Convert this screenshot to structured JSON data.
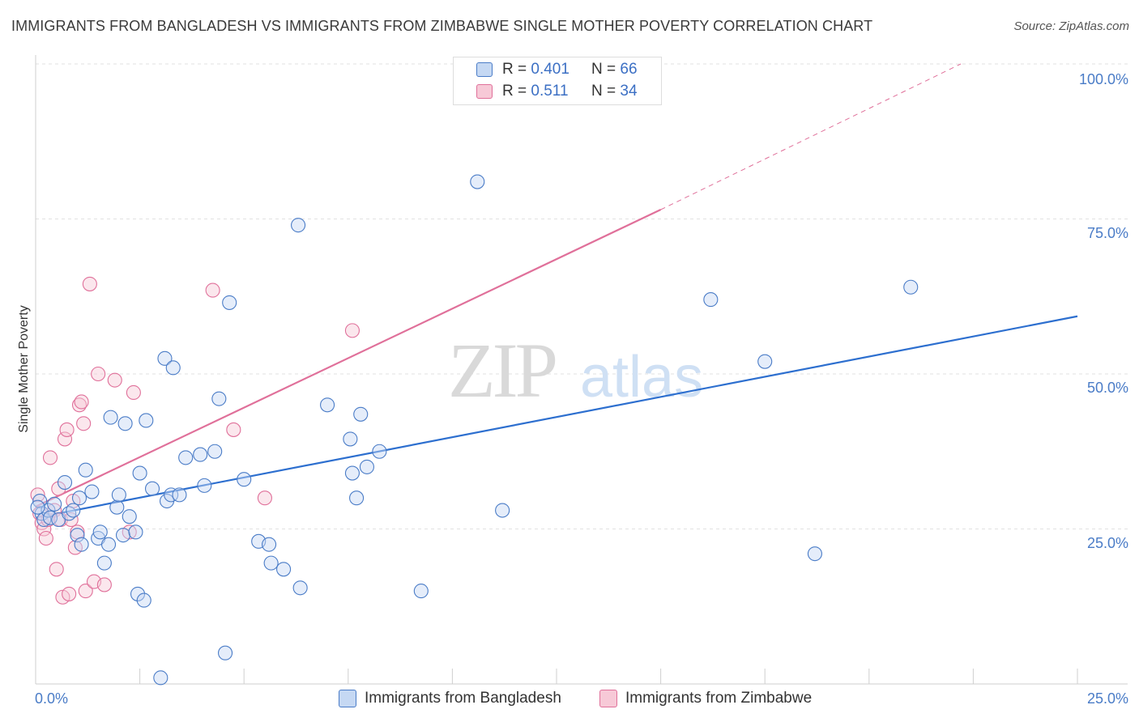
{
  "title": "IMMIGRANTS FROM BANGLADESH VS IMMIGRANTS FROM ZIMBABWE SINGLE MOTHER POVERTY CORRELATION CHART",
  "source": "Source: ZipAtlas.com",
  "watermark": {
    "zip": "ZIP",
    "atlas": "atlas"
  },
  "colors": {
    "blue": "#4a7cc7",
    "blue_fill": "#c5d8f3",
    "blue_line": "#2d6fcf",
    "pink": "#e0709a",
    "pink_fill": "#f7c9d7",
    "pink_line": "#e0709a"
  },
  "legend": {
    "rows": [
      {
        "r_label": "R = ",
        "r_value": "0.401",
        "n_label": "N = ",
        "n_value": "66"
      },
      {
        "r_label": "R = ",
        "r_value": " 0.511",
        "n_label": "N = ",
        "n_value": "34"
      }
    ]
  },
  "bottom_legend": {
    "series1": "Immigrants from Bangladesh",
    "series2": "Immigrants from Zimbabwe"
  },
  "chart_data": {
    "type": "scatter",
    "title": "IMMIGRANTS FROM BANGLADESH VS IMMIGRANTS FROM ZIMBABWE SINGLE MOTHER POVERTY CORRELATION CHART",
    "xlabel": "",
    "ylabel": "Single Mother Poverty",
    "xlim": [
      0,
      25
    ],
    "ylim": [
      0,
      102
    ],
    "x_tick_labels": [
      "0.0%",
      "25.0%"
    ],
    "y_ticks": [
      25,
      50,
      75,
      100
    ],
    "y_tick_labels": [
      "25.0%",
      "50.0%",
      "75.0%",
      "100.0%"
    ],
    "series": [
      {
        "name": "Immigrants from Bangladesh",
        "color": "#4a7cc7",
        "points": [
          [
            0.1,
            29.5
          ],
          [
            0.15,
            27.5
          ],
          [
            0.2,
            26.5
          ],
          [
            0.3,
            28.0
          ],
          [
            0.35,
            26.8
          ],
          [
            0.45,
            29.0
          ],
          [
            0.55,
            26.5
          ],
          [
            0.7,
            32.5
          ],
          [
            0.8,
            27.5
          ],
          [
            0.9,
            28.0
          ],
          [
            1.0,
            24.0
          ],
          [
            1.05,
            30.0
          ],
          [
            1.1,
            22.5
          ],
          [
            1.2,
            34.5
          ],
          [
            1.35,
            31.0
          ],
          [
            1.5,
            23.5
          ],
          [
            1.55,
            24.5
          ],
          [
            1.65,
            19.5
          ],
          [
            1.75,
            22.5
          ],
          [
            1.8,
            43.0
          ],
          [
            1.95,
            28.5
          ],
          [
            2.0,
            30.5
          ],
          [
            2.1,
            24.0
          ],
          [
            2.15,
            42.0
          ],
          [
            2.25,
            27.0
          ],
          [
            2.4,
            24.5
          ],
          [
            2.45,
            14.5
          ],
          [
            2.5,
            34.0
          ],
          [
            2.6,
            13.5
          ],
          [
            2.65,
            42.5
          ],
          [
            2.8,
            31.5
          ],
          [
            3.0,
            1.0
          ],
          [
            3.1,
            52.5
          ],
          [
            3.15,
            29.5
          ],
          [
            3.25,
            30.5
          ],
          [
            3.3,
            51.0
          ],
          [
            3.45,
            30.5
          ],
          [
            3.6,
            36.5
          ],
          [
            3.95,
            37.0
          ],
          [
            4.05,
            32.0
          ],
          [
            4.3,
            37.5
          ],
          [
            4.4,
            46.0
          ],
          [
            4.55,
            5.0
          ],
          [
            4.65,
            61.5
          ],
          [
            5.0,
            33.0
          ],
          [
            5.35,
            23.0
          ],
          [
            5.6,
            22.5
          ],
          [
            5.65,
            19.5
          ],
          [
            5.95,
            18.5
          ],
          [
            6.3,
            74.0
          ],
          [
            6.35,
            15.5
          ],
          [
            7.0,
            45.0
          ],
          [
            7.55,
            39.5
          ],
          [
            7.6,
            34.0
          ],
          [
            7.7,
            30.0
          ],
          [
            7.8,
            43.5
          ],
          [
            7.95,
            35.0
          ],
          [
            8.25,
            37.5
          ],
          [
            9.25,
            15.0
          ],
          [
            10.6,
            81.0
          ],
          [
            11.2,
            28.0
          ],
          [
            16.2,
            62.0
          ],
          [
            17.5,
            52.0
          ],
          [
            18.7,
            21.0
          ],
          [
            21.0,
            64.0
          ],
          [
            0.05,
            28.5
          ]
        ]
      },
      {
        "name": "Immigrants from Zimbabwe",
        "color": "#e0709a",
        "points": [
          [
            0.05,
            30.5
          ],
          [
            0.1,
            27.5
          ],
          [
            0.15,
            26.0
          ],
          [
            0.2,
            25.0
          ],
          [
            0.25,
            23.5
          ],
          [
            0.3,
            26.5
          ],
          [
            0.35,
            36.5
          ],
          [
            0.45,
            28.0
          ],
          [
            0.5,
            18.5
          ],
          [
            0.55,
            31.5
          ],
          [
            0.6,
            26.5
          ],
          [
            0.65,
            14.0
          ],
          [
            0.7,
            39.5
          ],
          [
            0.75,
            41.0
          ],
          [
            0.8,
            14.5
          ],
          [
            0.85,
            26.5
          ],
          [
            0.9,
            29.5
          ],
          [
            0.95,
            22.0
          ],
          [
            1.0,
            24.5
          ],
          [
            1.05,
            45.0
          ],
          [
            1.1,
            45.5
          ],
          [
            1.15,
            42.0
          ],
          [
            1.2,
            15.0
          ],
          [
            1.3,
            64.5
          ],
          [
            1.4,
            16.5
          ],
          [
            1.5,
            50.0
          ],
          [
            1.65,
            16.0
          ],
          [
            1.9,
            49.0
          ],
          [
            2.25,
            24.5
          ],
          [
            2.35,
            47.0
          ],
          [
            4.25,
            63.5
          ],
          [
            4.75,
            41.0
          ],
          [
            5.5,
            30.0
          ],
          [
            7.6,
            57.0
          ]
        ]
      }
    ],
    "trendlines": [
      {
        "series": "Immigrants from Bangladesh",
        "from": [
          0,
          26.8
        ],
        "to": [
          25,
          59.3
        ],
        "style": "solid"
      },
      {
        "series": "Immigrants from Zimbabwe",
        "from": [
          0,
          28.6
        ],
        "to": [
          15,
          76.5
        ],
        "style": "solid"
      },
      {
        "series": "Immigrants from Zimbabwe",
        "from": [
          15,
          76.5
        ],
        "to": [
          22.2,
          100
        ],
        "style": "dashed"
      }
    ],
    "grid": true,
    "legend_position": "top-center"
  }
}
